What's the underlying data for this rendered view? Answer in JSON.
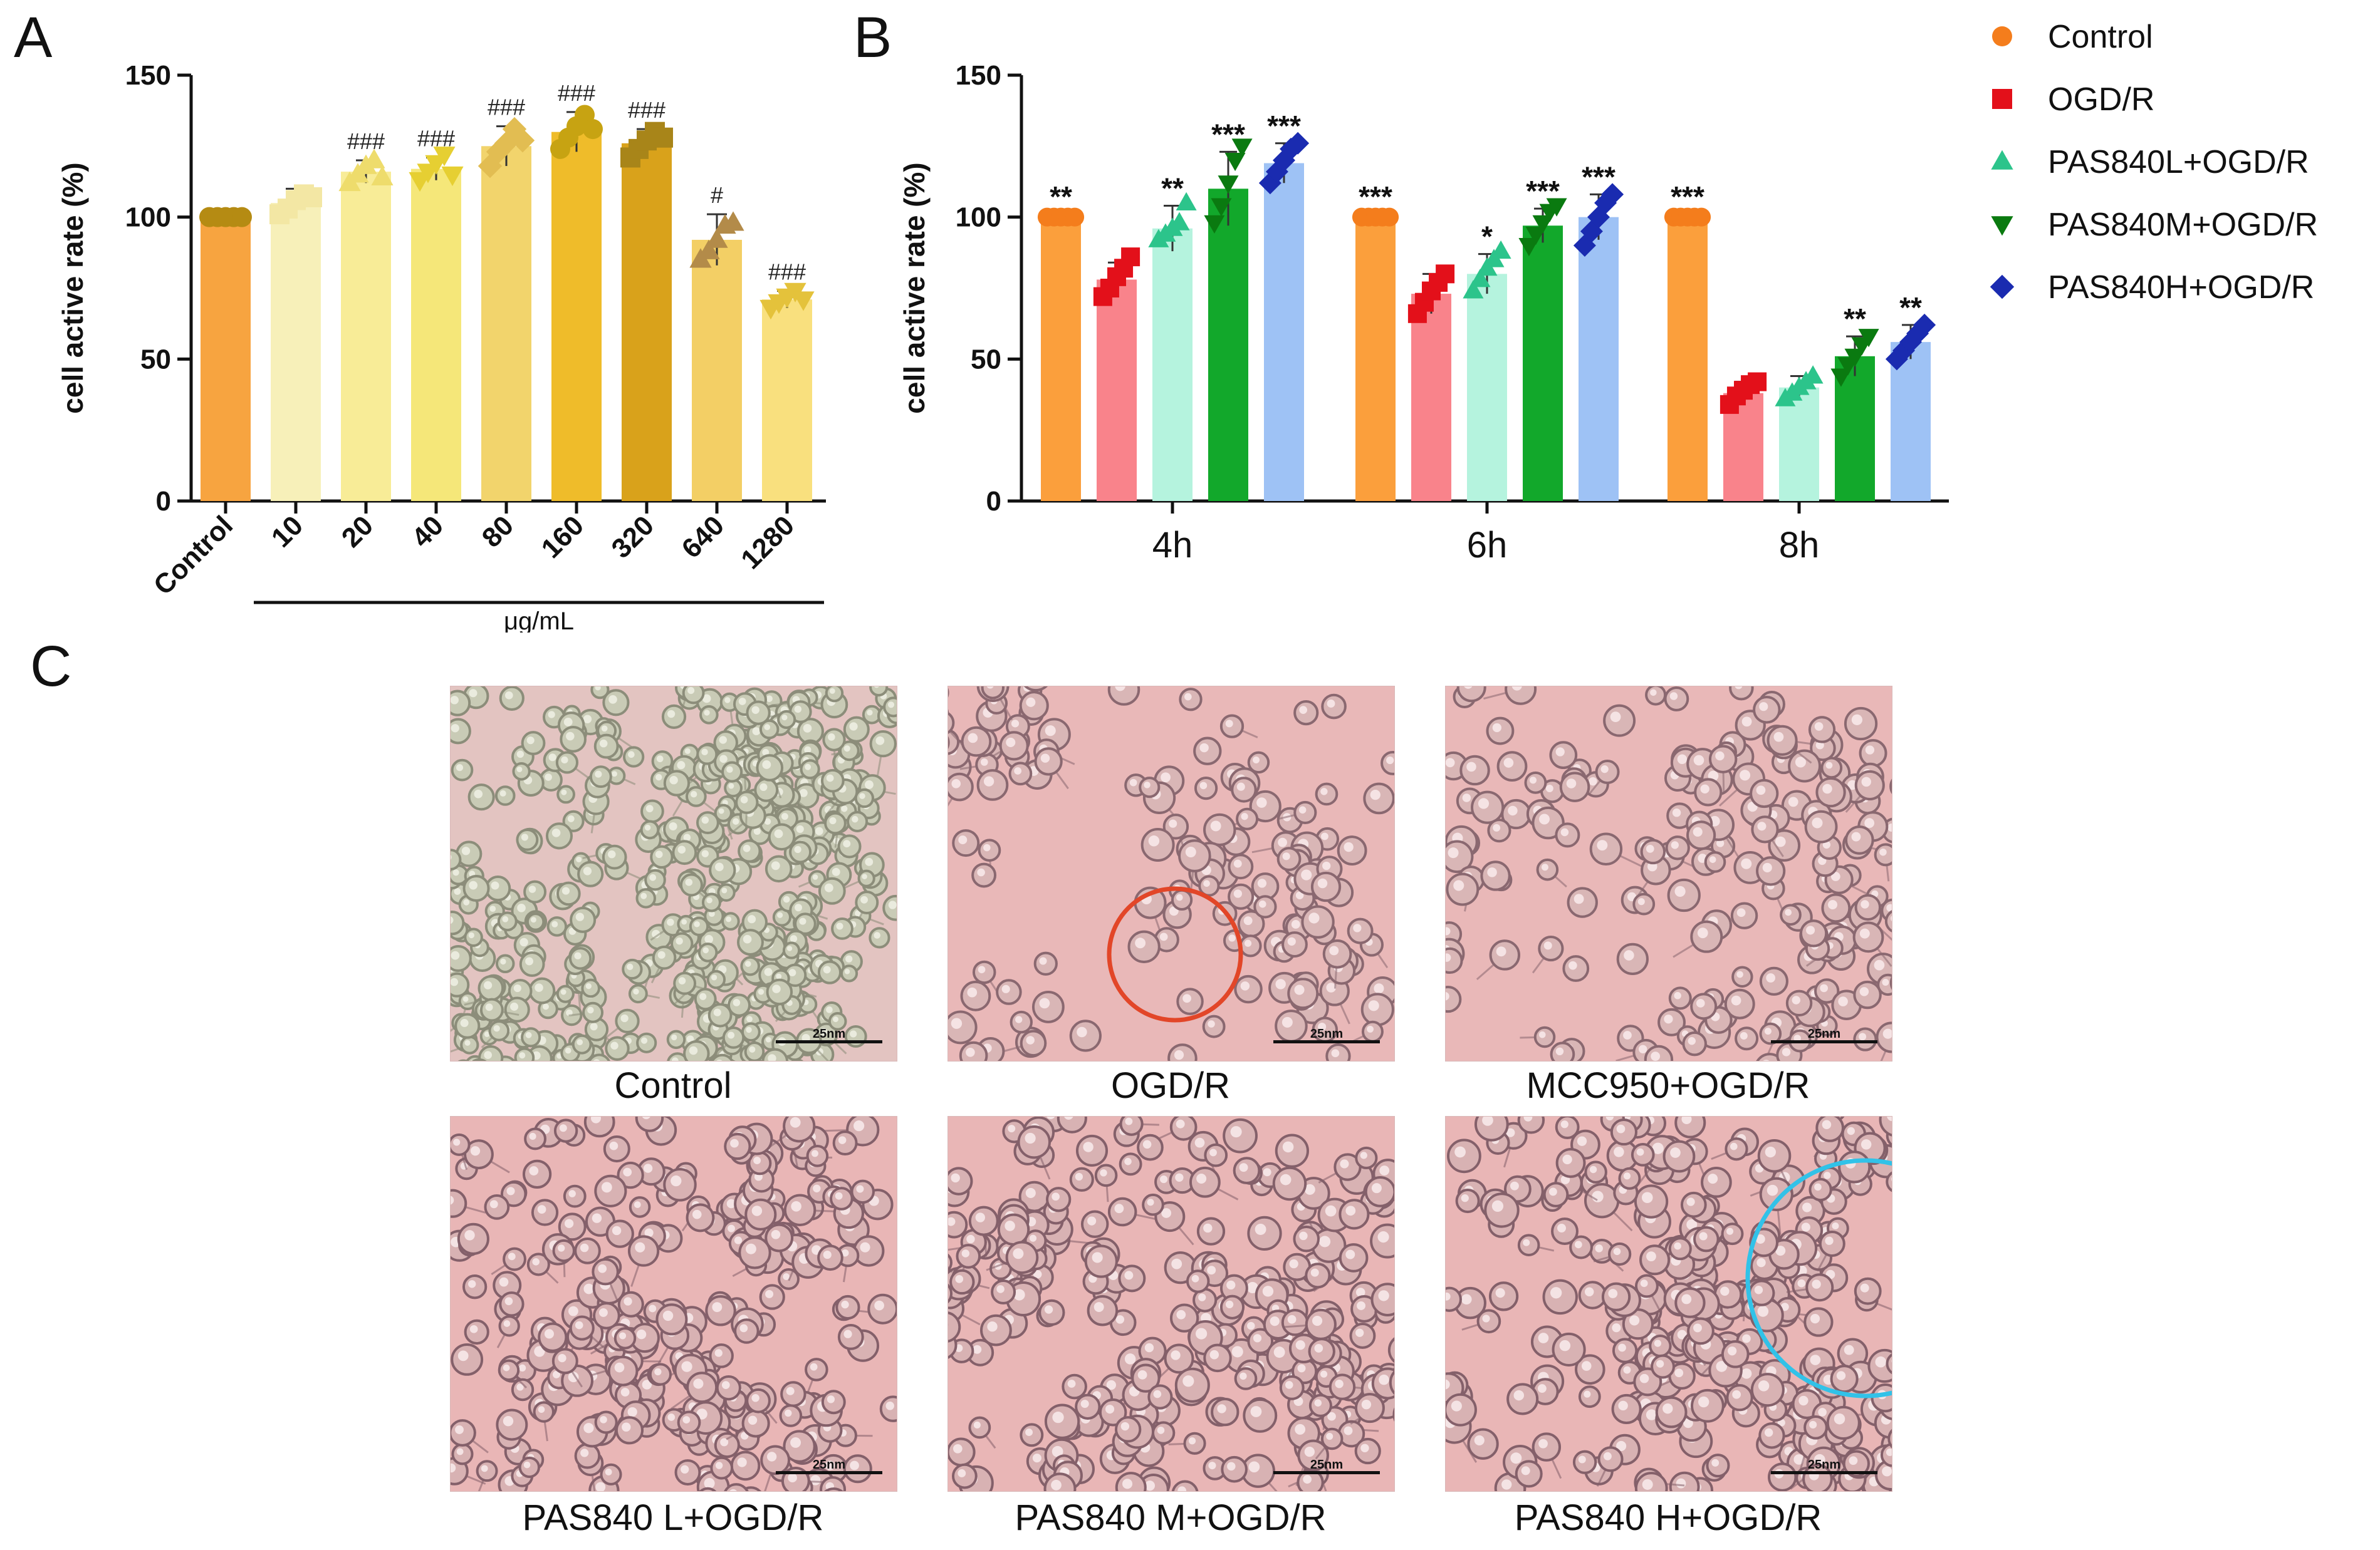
{
  "panels": {
    "a": "A",
    "b": "B",
    "c": "C"
  },
  "colors": {
    "control_a": "#f7a440",
    "conc": [
      "#f7f0b9",
      "#f8ec97",
      "#f5e779",
      "#f2d46c",
      "#efbc2a",
      "#d9a21b",
      "#f3cf65",
      "#f9e07e"
    ],
    "points_a": [
      "#b58b13",
      "#f3e7a4",
      "#eedc6c",
      "#e6cf32",
      "#e2bd52",
      "#c7a312",
      "#a88519",
      "#b38b49",
      "#e4c23b"
    ],
    "b_bars": [
      "#fb9f3c",
      "#f9838b",
      "#b5f3de",
      "#12a82b",
      "#9ec2f5"
    ],
    "b_points": [
      "#f47d1c",
      "#e3101a",
      "#2cc48b",
      "#0a7a10",
      "#1a2bb0"
    ],
    "red_circle": "#e24628",
    "blue_circle": "#31c2e8"
  },
  "chart_data": [
    {
      "id": "A",
      "type": "bar",
      "ylabel": "cell active rate (%)",
      "xlabel": "μg/mL",
      "ylim": [
        0,
        150
      ],
      "yticks": [
        "0",
        "50",
        "100",
        "150"
      ],
      "categories": [
        "Control",
        "10",
        "20",
        "40",
        "80",
        "160",
        "320",
        "640",
        "1280"
      ],
      "values": [
        100,
        105,
        116,
        117,
        125,
        130,
        126,
        92,
        71
      ],
      "errors": [
        1,
        5,
        4,
        4,
        7,
        7,
        5,
        9,
        3
      ],
      "points": [
        [
          100,
          100,
          100,
          100,
          100
        ],
        [
          101,
          103,
          106,
          108,
          107
        ],
        [
          112,
          115,
          118,
          120,
          114
        ],
        [
          113,
          116,
          119,
          122,
          115
        ],
        [
          118,
          123,
          126,
          131,
          127
        ],
        [
          124,
          128,
          132,
          136,
          131
        ],
        [
          121,
          124,
          127,
          130,
          128
        ],
        [
          85,
          88,
          92,
          97,
          98
        ],
        [
          68,
          70,
          72,
          74,
          71
        ]
      ],
      "point_shapes": [
        "circle",
        "square",
        "triangle",
        "tridown",
        "diamond",
        "circle",
        "square",
        "triangle",
        "tridown"
      ],
      "annotations": [
        "",
        "",
        "###",
        "###",
        "###",
        "###",
        "###",
        "#",
        "###"
      ]
    },
    {
      "id": "B",
      "type": "bar",
      "ylabel": "cell active rate (%)",
      "ylim": [
        0,
        150
      ],
      "yticks": [
        "0",
        "50",
        "100",
        "150"
      ],
      "categories": [
        "4h",
        "6h",
        "8h"
      ],
      "series": [
        {
          "name": "Control",
          "shape": "circle",
          "values": [
            100,
            100,
            100
          ],
          "errors": [
            1,
            1,
            1
          ],
          "points": [
            [
              100,
              100,
              100,
              100,
              100
            ],
            [
              100,
              100,
              100,
              100,
              100
            ],
            [
              100,
              100,
              100,
              100,
              100
            ]
          ],
          "annotations": [
            "**",
            "***",
            "***"
          ]
        },
        {
          "name": "OGD/R",
          "shape": "square",
          "values": [
            78,
            73,
            38
          ],
          "errors": [
            6,
            7,
            4
          ],
          "points": [
            [
              72,
              75,
              79,
              82,
              86
            ],
            [
              66,
              70,
              74,
              77,
              80
            ],
            [
              34,
              37,
              39,
              41,
              42
            ]
          ],
          "annotations": [
            "",
            "",
            ""
          ]
        },
        {
          "name": "PAS840L+OGD/R",
          "shape": "triangle",
          "values": [
            96,
            80,
            40
          ],
          "errors": [
            8,
            7,
            4
          ],
          "points": [
            [
              92,
              94,
              96,
              98,
              105
            ],
            [
              74,
              78,
              82,
              85,
              88
            ],
            [
              36,
              38,
              40,
              42,
              44
            ]
          ],
          "annotations": [
            "**",
            "*",
            ""
          ]
        },
        {
          "name": "PAS840M+OGD/R",
          "shape": "tridown",
          "values": [
            110,
            97,
            51
          ],
          "errors": [
            13,
            6,
            7
          ],
          "points": [
            [
              98,
              104,
              112,
              120,
              125
            ],
            [
              90,
              94,
              98,
              102,
              104
            ],
            [
              44,
              48,
              51,
              55,
              58
            ]
          ],
          "annotations": [
            "***",
            "***",
            "**"
          ]
        },
        {
          "name": "PAS840H+OGD/R",
          "shape": "diamond",
          "values": [
            119,
            100,
            56
          ],
          "errors": [
            7,
            8,
            6
          ],
          "points": [
            [
              112,
              116,
              120,
              124,
              126
            ],
            [
              90,
              95,
              100,
              105,
              108
            ],
            [
              50,
              53,
              56,
              59,
              62
            ]
          ],
          "annotations": [
            "***",
            "***",
            "**"
          ]
        }
      ]
    }
  ],
  "micrographs": [
    {
      "caption": "Control",
      "scale": "25nm"
    },
    {
      "caption": "OGD/R",
      "scale": "25nm"
    },
    {
      "caption": "MCC950+OGD/R",
      "scale": "25nm"
    },
    {
      "caption": "PAS840 L+OGD/R",
      "scale": "25nm"
    },
    {
      "caption": "PAS840 M+OGD/R",
      "scale": "25nm"
    },
    {
      "caption": "PAS840 H+OGD/R",
      "scale": "25nm"
    }
  ]
}
